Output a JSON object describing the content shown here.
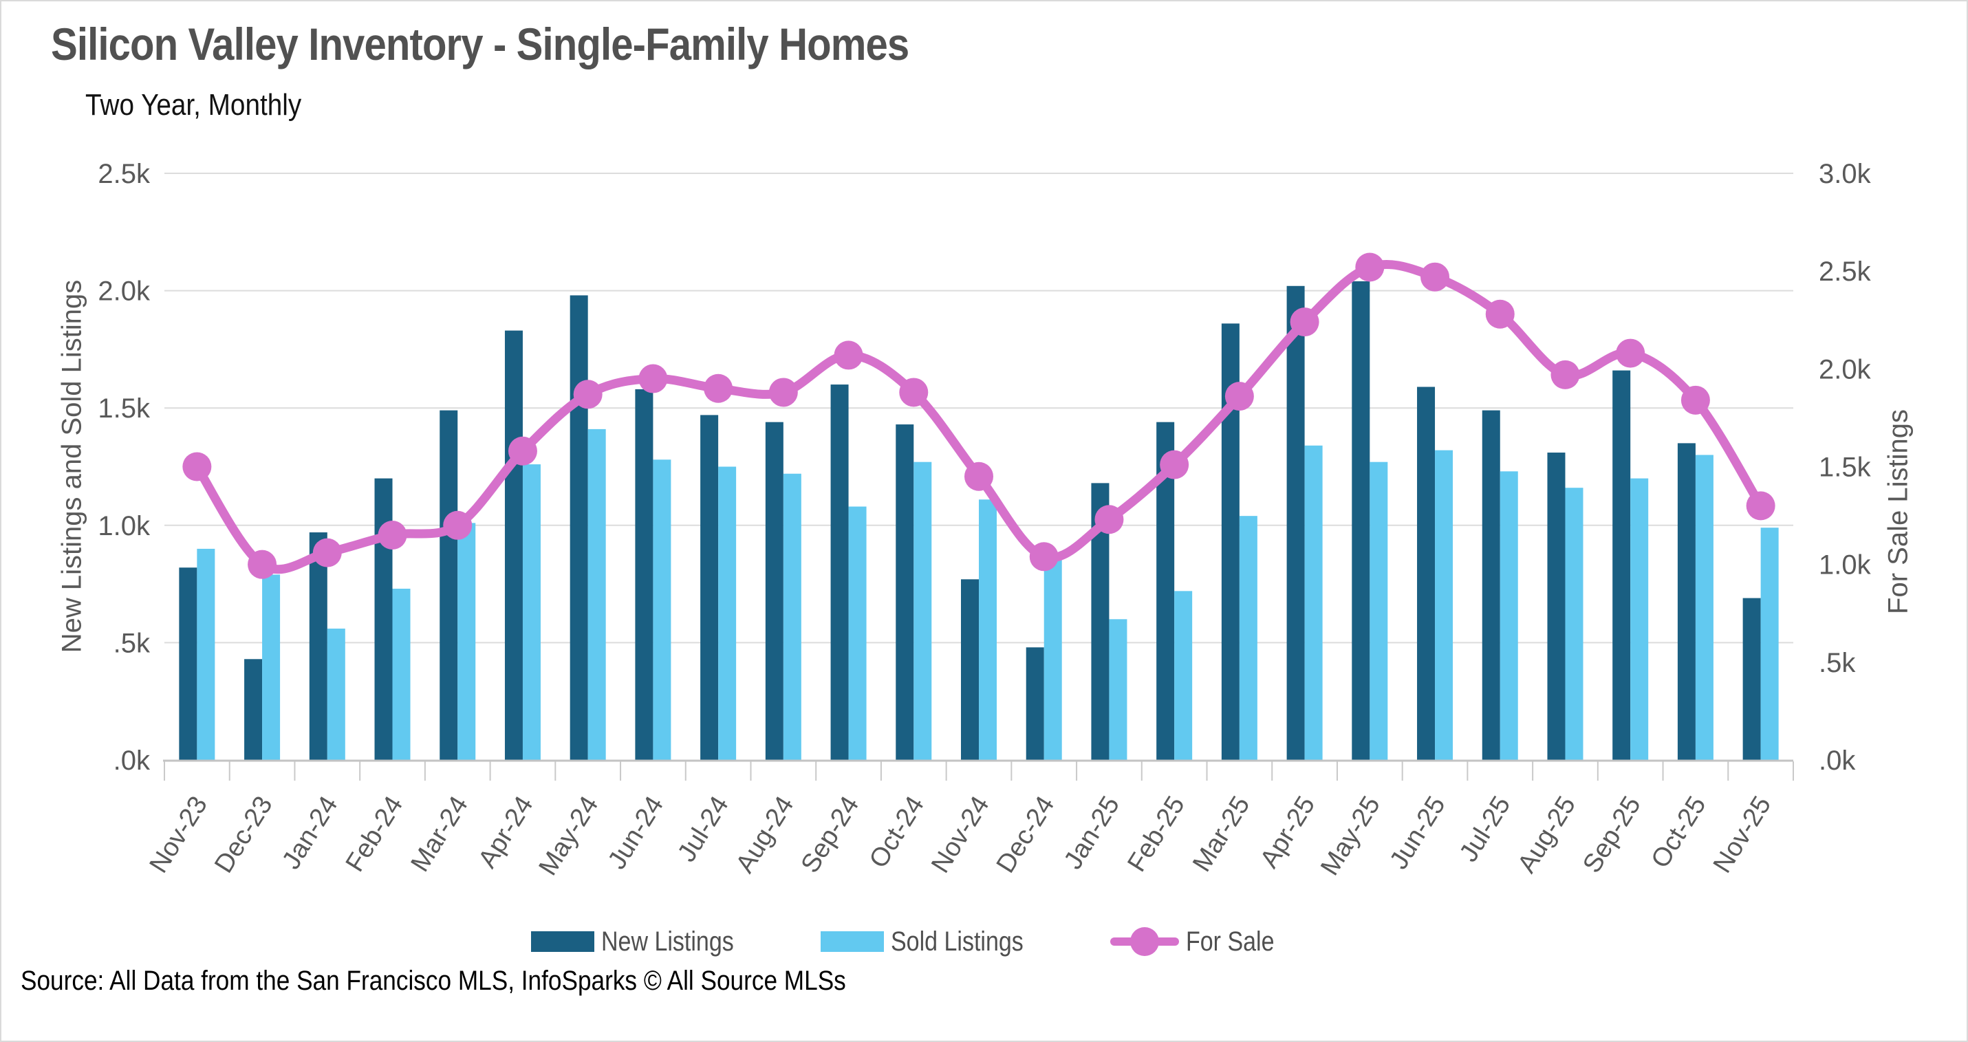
{
  "title": "Silicon Valley Inventory - Single-Family Homes",
  "subtitle": "Two Year, Monthly",
  "source": "Source: All Data from the San Francisco MLS, InfoSparks © All Source MLSs",
  "legend": [
    {
      "label": "New Listings",
      "icon": "swatch",
      "color": "#1A5F82"
    },
    {
      "label": "Sold Listings",
      "icon": "swatch",
      "color": "#62C9F0"
    },
    {
      "label": "For Sale",
      "icon": "line-dot",
      "color": "#D671CB"
    }
  ],
  "chart_data": {
    "type": "combo (grouped bars + line on secondary axis)",
    "units": "thousands of listings",
    "grid": true,
    "legend_position": "bottom",
    "categories": [
      "Nov-23",
      "Dec-23",
      "Jan-24",
      "Feb-24",
      "Mar-24",
      "Apr-24",
      "May-24",
      "Jun-24",
      "Jul-24",
      "Aug-24",
      "Sep-24",
      "Oct-24",
      "Nov-24",
      "Dec-24",
      "Jan-25",
      "Feb-25",
      "Mar-25",
      "Apr-25",
      "May-25",
      "Jun-25",
      "Jul-25",
      "Aug-25",
      "Sep-25",
      "Oct-25",
      "Nov-25"
    ],
    "series": [
      {
        "name": "New Listings",
        "type": "bar",
        "axis": "left",
        "color": "#1A5F82",
        "values": [
          0.82,
          0.43,
          0.97,
          1.2,
          1.49,
          1.83,
          1.98,
          1.58,
          1.47,
          1.44,
          1.6,
          1.43,
          0.77,
          0.48,
          1.18,
          1.44,
          1.86,
          2.02,
          2.04,
          1.59,
          1.49,
          1.31,
          1.66,
          1.35,
          0.69
        ]
      },
      {
        "name": "Sold Listings",
        "type": "bar",
        "axis": "left",
        "color": "#62C9F0",
        "values": [
          0.9,
          0.79,
          0.56,
          0.73,
          1.01,
          1.26,
          1.41,
          1.28,
          1.25,
          1.22,
          1.08,
          1.27,
          1.11,
          0.87,
          0.6,
          0.72,
          1.04,
          1.34,
          1.27,
          1.32,
          1.23,
          1.16,
          1.2,
          1.3,
          0.99
        ]
      },
      {
        "name": "For Sale",
        "type": "line",
        "axis": "right",
        "color": "#D671CB",
        "values": [
          1.5,
          1.0,
          1.06,
          1.15,
          1.2,
          1.58,
          1.87,
          1.95,
          1.9,
          1.88,
          2.07,
          1.88,
          1.45,
          1.04,
          1.23,
          1.51,
          1.86,
          2.24,
          2.52,
          2.47,
          2.28,
          1.97,
          2.08,
          1.84,
          1.3
        ]
      }
    ],
    "left_axis": {
      "label": "New Listings and Sold Listings",
      "min": 0,
      "max": 2.5,
      "ticks": [
        ".0k",
        ".5k",
        "1.0k",
        "1.5k",
        "2.0k",
        "2.5k"
      ]
    },
    "right_axis": {
      "label": "For Sale Listings",
      "min": 0,
      "max": 3.0,
      "ticks": [
        ".0k",
        ".5k",
        "1.0k",
        "1.5k",
        "2.0k",
        "2.5k",
        "3.0k"
      ]
    }
  }
}
